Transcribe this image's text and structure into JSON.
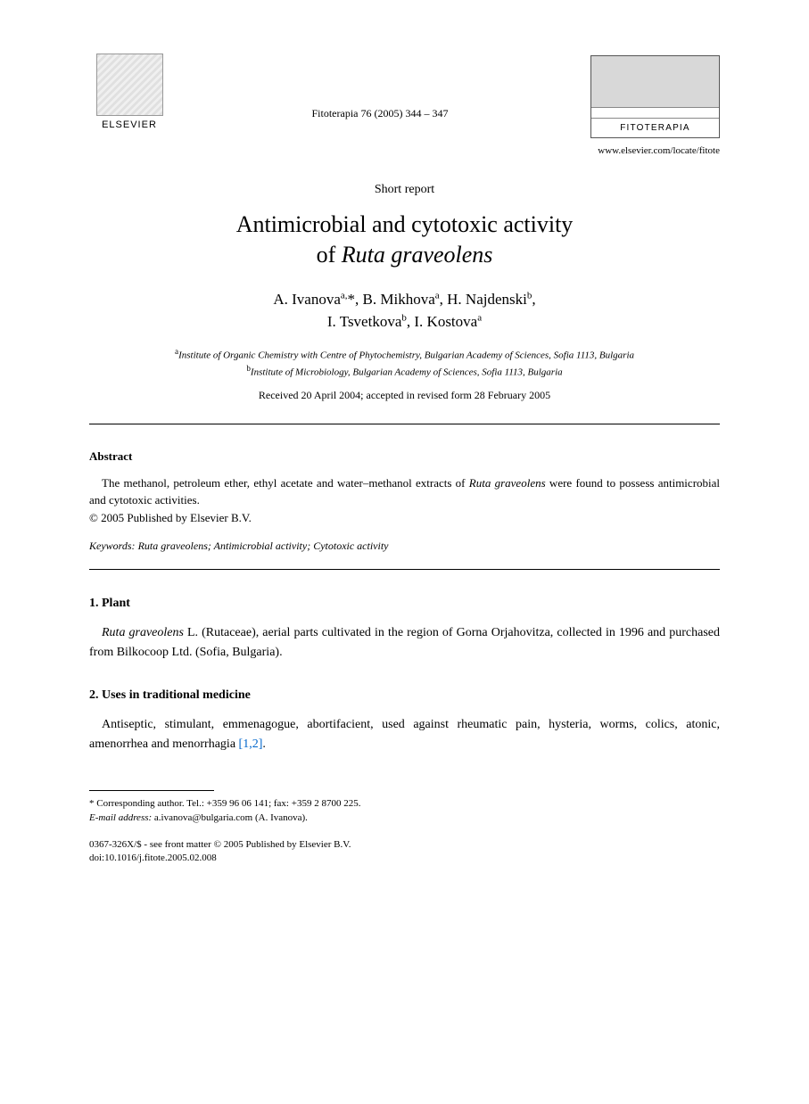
{
  "header": {
    "publisher_label": "ELSEVIER",
    "citation": "Fitoterapia 76 (2005) 344 – 347",
    "journal_name": "FITOTERAPIA",
    "url": "www.elsevier.com/locate/fitote"
  },
  "article": {
    "type": "Short report",
    "title_line1": "Antimicrobial and cytotoxic activity",
    "title_line2_prefix": "of ",
    "title_line2_italic": "Ruta graveolens",
    "authors_line1": "A. Ivanova",
    "authors_sup1": "a,",
    "authors_star": "*",
    "authors_line1b": ", B. Mikhova",
    "authors_sup2": "a",
    "authors_line1c": ", H. Najdenski",
    "authors_sup3": "b",
    "authors_line1d": ",",
    "authors_line2a": "I. Tsvetkova",
    "authors_sup4": "b",
    "authors_line2b": ", I. Kostova",
    "authors_sup5": "a",
    "affil_a_sup": "a",
    "affil_a": "Institute of Organic Chemistry with Centre of Phytochemistry, Bulgarian Academy of Sciences, Sofia 1113, Bulgaria",
    "affil_b_sup": "b",
    "affil_b": "Institute of Microbiology, Bulgarian Academy of Sciences, Sofia 1113, Bulgaria",
    "dates": "Received 20 April 2004; accepted in revised form 28 February 2005"
  },
  "abstract": {
    "heading": "Abstract",
    "text_pre": "The methanol, petroleum ether, ethyl acetate and water–methanol extracts of ",
    "text_italic": "Ruta graveolens",
    "text_post": " were found to possess antimicrobial and cytotoxic activities.",
    "copyright": "© 2005 Published by Elsevier B.V.",
    "keywords_label": "Keywords: ",
    "keywords_italic": "Ruta graveolens",
    "keywords_rest": "; Antimicrobial activity; Cytotoxic activity"
  },
  "sections": {
    "s1": {
      "heading": "1. Plant",
      "text_italic": "Ruta graveolens",
      "text_rest": " L. (Rutaceae), aerial parts cultivated in the region of Gorna Orjahovitza, collected in 1996 and purchased from Bilkocoop Ltd. (Sofia, Bulgaria)."
    },
    "s2": {
      "heading": "2. Uses in traditional medicine",
      "text": "Antiseptic, stimulant, emmenagogue, abortifacient, used against rheumatic pain, hysteria, worms, colics, atonic, amenorrhea and menorrhagia ",
      "cite": "[1,2]",
      "text_end": "."
    }
  },
  "footer": {
    "corr_label": "* Corresponding author. Tel.: +359 96 06 141; fax: +359 2 8700 225.",
    "email_label": "E-mail address:",
    "email": " a.ivanova@bulgaria.com (A. Ivanova).",
    "issn": "0367-326X/$ - see front matter © 2005 Published by Elsevier B.V.",
    "doi": "doi:10.1016/j.fitote.2005.02.008"
  },
  "style": {
    "body_width": 907,
    "body_bg": "#ffffff",
    "text_color": "#000000",
    "link_color": "#0066cc",
    "title_fontsize": 26,
    "author_fontsize": 17,
    "body_fontsize": 14,
    "small_fontsize": 11
  }
}
